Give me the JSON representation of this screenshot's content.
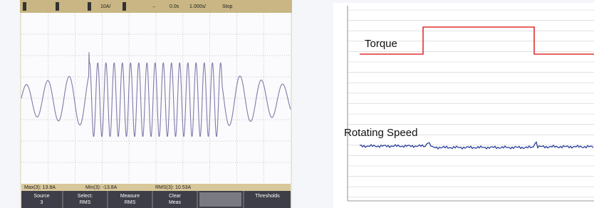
{
  "oscilloscope": {
    "status_bar": {
      "scale": "10A/",
      "delay": "0.0s",
      "timebase": "1.000s/",
      "state": "Stop"
    },
    "measurements": [
      "Max(3): 13.8A",
      "Min(3): -13.8A",
      "RMS(3): 10.53A"
    ],
    "softkeys": [
      [
        "Source",
        "3"
      ],
      [
        "Select:",
        "RMS"
      ],
      [
        "Measure",
        "RMS"
      ],
      [
        "Clear",
        "Meas"
      ],
      [
        "Thresholds"
      ]
    ]
  },
  "trend_chart": {
    "labels": [
      "Torque",
      "Rotating Speed"
    ]
  }
}
